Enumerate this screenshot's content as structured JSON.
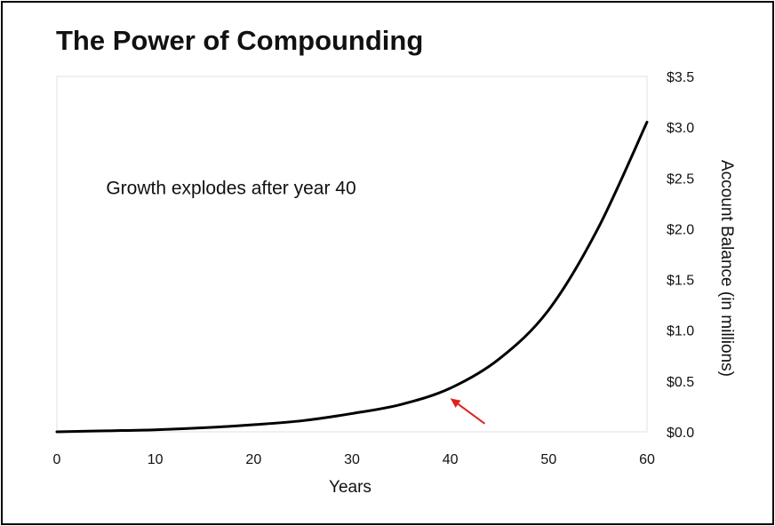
{
  "title": "The Power of Compounding",
  "chart_data": {
    "type": "line",
    "title": "The Power of Compounding",
    "xlabel": "Years",
    "ylabel": "Account Balance (in millions)",
    "xlim": [
      0,
      60
    ],
    "ylim": [
      0,
      3.5
    ],
    "x_ticks": [
      0,
      10,
      20,
      30,
      40,
      50,
      60
    ],
    "x_tick_labels": [
      "0",
      "10",
      "20",
      "30",
      "40",
      "50",
      "60"
    ],
    "y_ticks": [
      0,
      0.5,
      1.0,
      1.5,
      2.0,
      2.5,
      3.0,
      3.5
    ],
    "y_tick_labels": [
      "$0.0",
      "$0.5",
      "$1.0",
      "$1.5",
      "$2.0",
      "$2.5",
      "$3.0",
      "$3.5"
    ],
    "y_axis_side": "right",
    "grid": false,
    "series": [
      {
        "color": "#000000",
        "x": [
          0,
          5,
          10,
          15,
          20,
          25,
          30,
          35,
          40,
          45,
          50,
          55,
          60
        ],
        "y": [
          0.0,
          0.01,
          0.02,
          0.04,
          0.07,
          0.11,
          0.18,
          0.27,
          0.43,
          0.72,
          1.2,
          2.0,
          3.05
        ]
      }
    ],
    "annotations": [
      {
        "text": "Growth explodes after year 40",
        "x": 5,
        "y": 2.4
      },
      {
        "type": "arrow",
        "color": "#e02020",
        "from": [
          43.5,
          0.08
        ],
        "to": [
          40,
          0.33
        ]
      }
    ]
  }
}
